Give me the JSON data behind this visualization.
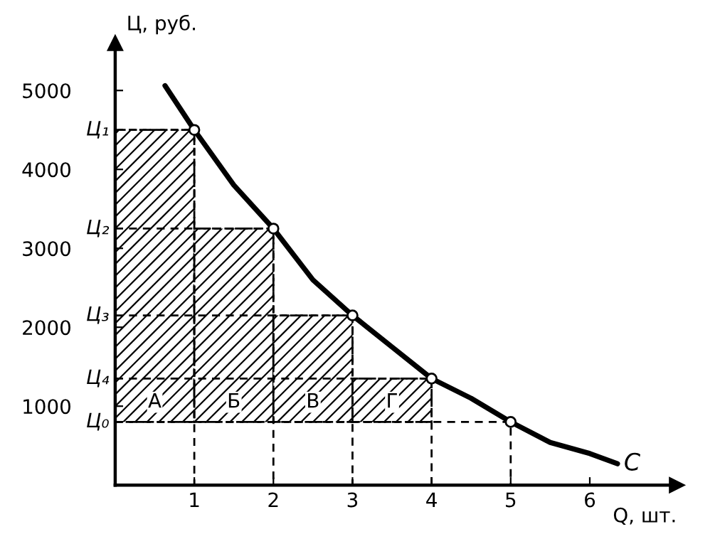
{
  "chart_data": {
    "type": "line",
    "xlabel": "Q, шт.",
    "ylabel": "Ц, руб.",
    "xlim": [
      0,
      7.1
    ],
    "ylim": [
      0,
      5600
    ],
    "xticks": [
      1,
      2,
      3,
      4,
      5,
      6
    ],
    "yticks": [
      1000,
      2000,
      3000,
      4000,
      5000
    ],
    "grid": false,
    "series": [
      {
        "type": "bar",
        "color": "#000000",
        "x": [
          0.5,
          1.5,
          2.5,
          3.5
        ],
        "base": [
          800,
          800,
          800,
          800
        ],
        "values": [
          3700,
          2450,
          1350,
          550
        ]
      },
      {
        "line_style": "dashed",
        "color": "#000000",
        "x": [
          0,
          1,
          1
        ],
        "values": [
          4500,
          4500,
          0
        ]
      },
      {
        "line_style": "dashed",
        "color": "#000000",
        "x": [
          0,
          2,
          2
        ],
        "values": [
          3250,
          3250,
          0
        ]
      },
      {
        "line_style": "dashed",
        "color": "#000000",
        "x": [
          0,
          3,
          3
        ],
        "values": [
          2150,
          2150,
          0
        ]
      },
      {
        "line_style": "dashed",
        "color": "#000000",
        "x": [
          0,
          4,
          4
        ],
        "values": [
          1350,
          1350,
          0
        ]
      },
      {
        "line_style": "dashed",
        "color": "#000000",
        "x": [
          0,
          5,
          5
        ],
        "values": [
          800,
          800,
          0
        ]
      },
      {
        "name": "С",
        "color": "#000000",
        "x": [
          0.63,
          1,
          1.5,
          2,
          2.5,
          3,
          3.5,
          4,
          4.5,
          5,
          5.5,
          6,
          6.35
        ],
        "values": [
          5060,
          4500,
          3800,
          3250,
          2600,
          2150,
          1750,
          1350,
          1100,
          800,
          540,
          400,
          270
        ]
      },
      {
        "type": "scatter",
        "marker": "circle",
        "color": "#000000",
        "x": [
          1,
          2,
          3,
          4,
          5
        ],
        "values": [
          4500,
          3250,
          2150,
          1350,
          800
        ]
      }
    ],
    "annotations": [
      {
        "text": "А",
        "x": 0.5,
        "y": 1050
      },
      {
        "text": "Б",
        "x": 1.5,
        "y": 1050
      },
      {
        "text": "В",
        "x": 2.5,
        "y": 1050
      },
      {
        "text": "Г",
        "x": 3.5,
        "y": 1050
      },
      {
        "text": "Ц₁",
        "x": 0,
        "y": 4500
      },
      {
        "text": "Ц₂",
        "x": 0,
        "y": 3250
      },
      {
        "text": "Ц₃",
        "x": 0,
        "y": 2150
      },
      {
        "text": "Ц₄",
        "x": 0,
        "y": 1350
      },
      {
        "text": "Ц₀",
        "x": 0,
        "y": 800
      }
    ]
  }
}
